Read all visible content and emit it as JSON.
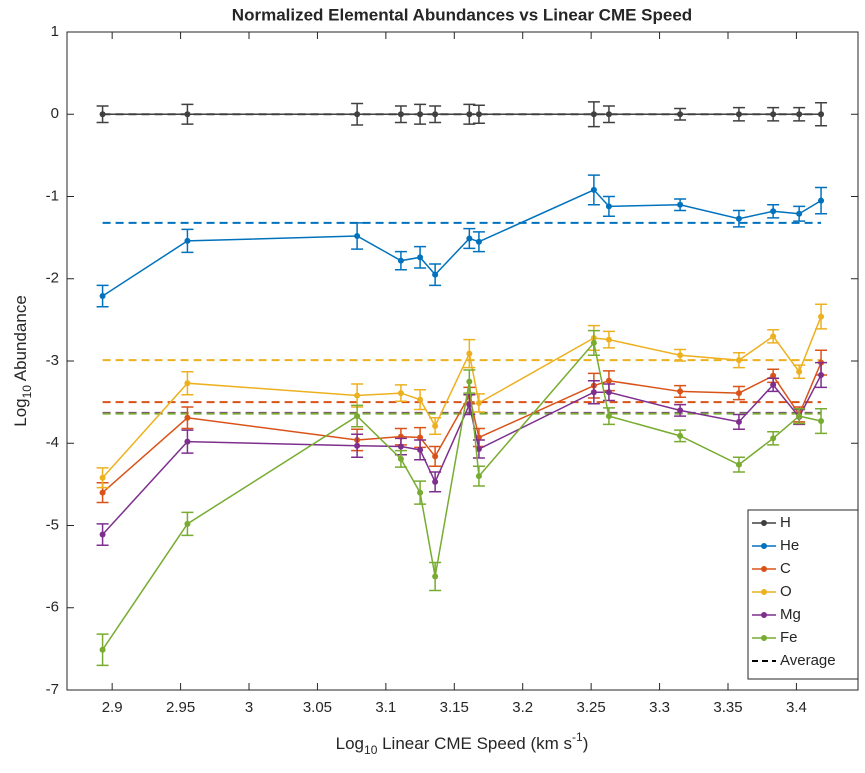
{
  "chart_data": {
    "type": "errorline",
    "title": "Normalized Elemental Abundances vs Linear CME Speed",
    "x_label": {
      "base": "Log",
      "sub": "10",
      "text": " Linear CME Speed (km s",
      "sup": "-1",
      "end": ")"
    },
    "y_label": {
      "base": "Log",
      "sub": "10",
      "text": " Abundance"
    },
    "x": [
      2.893,
      2.955,
      3.079,
      3.111,
      3.125,
      3.136,
      3.161,
      3.168,
      3.252,
      3.263,
      3.315,
      3.358,
      3.383,
      3.402,
      3.418
    ],
    "xlim": [
      2.867,
      3.445
    ],
    "xticks": [
      2.9,
      2.95,
      3,
      3.05,
      3.1,
      3.15,
      3.2,
      3.25,
      3.3,
      3.35,
      3.4
    ],
    "ylim": [
      -7,
      1
    ],
    "yticks": [
      -7,
      -6,
      -5,
      -4,
      -3,
      -2,
      -1,
      0,
      1
    ],
    "average_label": "Average",
    "series": [
      {
        "name": "H",
        "color": "#404040",
        "average": 0,
        "values": [
          0,
          0,
          0,
          0,
          0,
          0,
          0,
          0,
          0,
          0,
          0,
          0,
          0,
          0,
          0
        ],
        "errors": [
          0.1,
          0.12,
          0.13,
          0.1,
          0.12,
          0.1,
          0.12,
          0.11,
          0.15,
          0.1,
          0.07,
          0.08,
          0.08,
          0.08,
          0.14
        ]
      },
      {
        "name": "He",
        "color": "#0072BD",
        "average": -1.32,
        "values": [
          -2.21,
          -1.54,
          -1.48,
          -1.78,
          -1.74,
          -1.95,
          -1.51,
          -1.55,
          -0.92,
          -1.12,
          -1.1,
          -1.27,
          -1.18,
          -1.21,
          -1.05
        ],
        "errors": [
          0.13,
          0.14,
          0.16,
          0.11,
          0.13,
          0.13,
          0.12,
          0.12,
          0.18,
          0.12,
          0.07,
          0.1,
          0.08,
          0.09,
          0.16
        ]
      },
      {
        "name": "C",
        "color": "#D95319",
        "average": -3.5,
        "values": [
          -4.6,
          -3.69,
          -3.96,
          -3.92,
          -3.93,
          -4.16,
          -3.42,
          -3.93,
          -3.3,
          -3.24,
          -3.37,
          -3.39,
          -3.18,
          -3.65,
          -3.02
        ],
        "errors": [
          0.12,
          0.13,
          0.13,
          0.1,
          0.12,
          0.12,
          0.1,
          0.11,
          0.15,
          0.12,
          0.07,
          0.08,
          0.08,
          0.09,
          0.15
        ]
      },
      {
        "name": "O",
        "color": "#EDB120",
        "average": -2.99,
        "values": [
          -4.42,
          -3.27,
          -3.42,
          -3.39,
          -3.47,
          -3.79,
          -2.91,
          -3.51,
          -2.72,
          -2.74,
          -2.93,
          -2.99,
          -2.7,
          -3.13,
          -2.46
        ],
        "errors": [
          0.12,
          0.14,
          0.14,
          0.1,
          0.12,
          0.1,
          0.17,
          0.11,
          0.15,
          0.1,
          0.07,
          0.09,
          0.08,
          0.08,
          0.15
        ]
      },
      {
        "name": "Mg",
        "color": "#7E2F8E",
        "average": -3.63,
        "values": [
          -5.11,
          -3.98,
          -4.03,
          -4.04,
          -4.08,
          -4.47,
          -3.53,
          -4.07,
          -3.38,
          -3.38,
          -3.6,
          -3.74,
          -3.29,
          -3.68,
          -3.17
        ],
        "errors": [
          0.13,
          0.14,
          0.14,
          0.1,
          0.12,
          0.12,
          0.12,
          0.11,
          0.14,
          0.1,
          0.07,
          0.09,
          0.08,
          0.09,
          0.15
        ]
      },
      {
        "name": "Fe",
        "color": "#77AC30",
        "average": -3.64,
        "values": [
          -6.51,
          -4.98,
          -3.67,
          -4.19,
          -4.6,
          -5.62,
          -3.25,
          -4.4,
          -2.78,
          -3.67,
          -3.91,
          -4.26,
          -3.94,
          -3.67,
          -3.73
        ],
        "errors": [
          0.19,
          0.14,
          0.13,
          0.1,
          0.14,
          0.17,
          0.14,
          0.12,
          0.15,
          0.1,
          0.07,
          0.09,
          0.08,
          0.09,
          0.15
        ]
      }
    ]
  }
}
